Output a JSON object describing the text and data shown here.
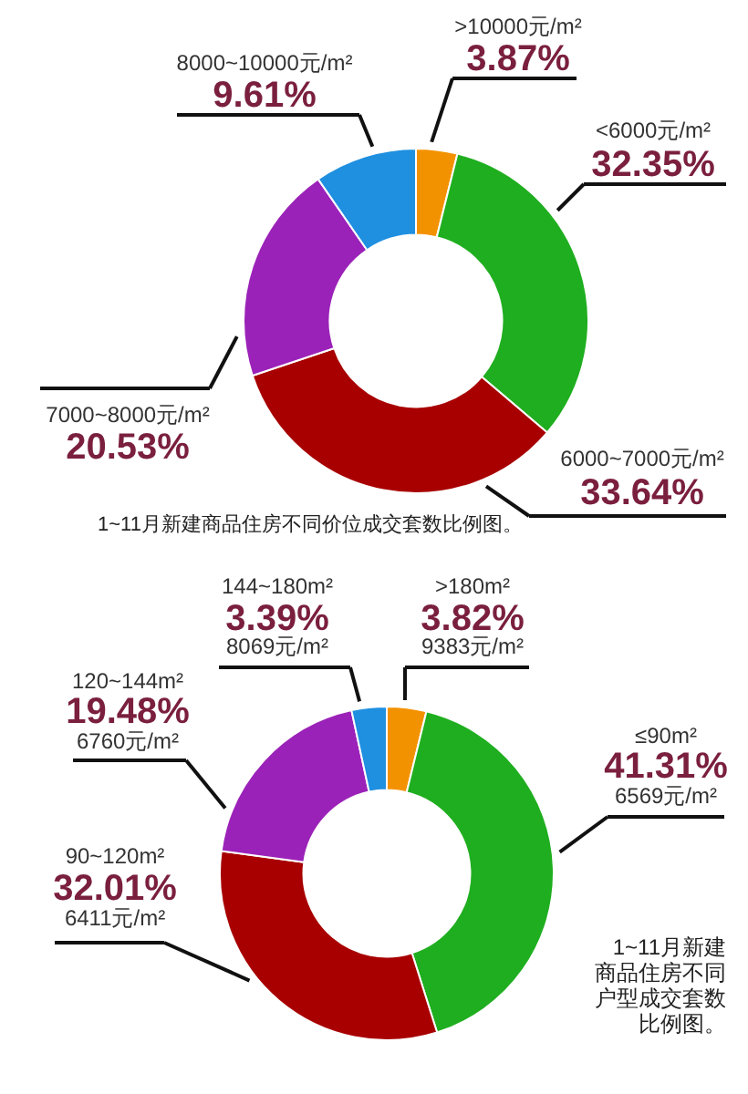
{
  "chart_data": [
    {
      "type": "donut",
      "title": "1~11月新建商品住房不同价位成交套数比例图。",
      "categories": [
        ">10000元/m²",
        "<6000元/m²",
        "6000~7000元/m²",
        "7000~8000元/m²",
        "8000~10000元/m²"
      ],
      "values": [
        3.87,
        32.35,
        33.64,
        20.53,
        9.61
      ],
      "colors": [
        "#f39200",
        "#1fae1f",
        "#a80000",
        "#9b22b8",
        "#1f8fe0"
      ],
      "value_labels": [
        "3.87%",
        "32.35%",
        "33.64%",
        "20.53%",
        "9.61%"
      ]
    },
    {
      "type": "donut",
      "title": "1~11月新建商品住房不同户型成交套数比例图。",
      "categories": [
        ">180m²",
        "≤90m²",
        "90~120m²",
        "120~144m²",
        "144~180m²"
      ],
      "values": [
        3.82,
        41.31,
        32.01,
        19.48,
        3.39
      ],
      "colors": [
        "#f39200",
        "#1fae1f",
        "#a80000",
        "#9b22b8",
        "#1f8fe0"
      ],
      "value_labels": [
        "3.82%",
        "41.31%",
        "32.01%",
        "19.48%",
        "3.39%"
      ],
      "annotations": [
        "9383元/m²",
        "6569元/m²",
        "6411元/m²",
        "6760元/m²",
        "8069元/m²"
      ]
    }
  ]
}
